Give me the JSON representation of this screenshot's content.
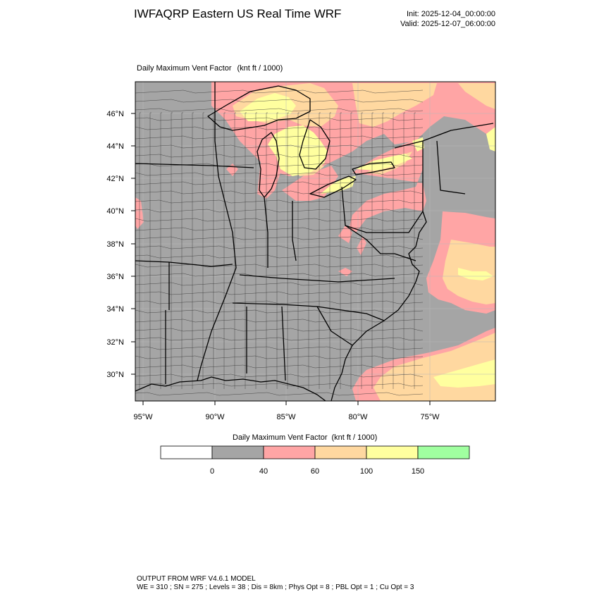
{
  "header": {
    "title": "IWFAQRP Eastern US Real Time WRF",
    "init": "Init: 2025-12-04_00:00:00",
    "valid": "Valid: 2025-12-07_06:00:00"
  },
  "map": {
    "field_label": "Daily Maximum Vent Factor",
    "units": "(knt ft / 1000)",
    "lat_labels": [
      "46°N",
      "44°N",
      "42°N",
      "40°N",
      "38°N",
      "36°N",
      "34°N",
      "32°N",
      "30°N"
    ],
    "lon_labels": [
      "95°W",
      "90°W",
      "85°W",
      "80°W",
      "75°W"
    ],
    "colors": {
      "below_40": "#a5a5a5",
      "40_60": "#ffa5a5",
      "60_100": "#ffd8a0",
      "100_150": "#ffff9f",
      "above_150": "#a0ffa0",
      "water_boundary": "#000000"
    }
  },
  "legend": {
    "title": "Daily Maximum Vent Factor",
    "units": "(knt ft / 1000)",
    "colors": [
      "#ffffff",
      "#a5a5a5",
      "#ffa5a5",
      "#ffd8a0",
      "#ffff9f",
      "#a0ffa0"
    ],
    "labels": [
      "0",
      "40",
      "60",
      "100",
      "150"
    ]
  },
  "footer": {
    "line1": "OUTPUT FROM WRF V4.6.1 MODEL",
    "line2": "WE = 310 ; SN = 275 ; Levels = 38 ; Dis = 8km ; Phys Opt = 8 ; PBL Opt = 1 ; Cu Opt = 3"
  }
}
